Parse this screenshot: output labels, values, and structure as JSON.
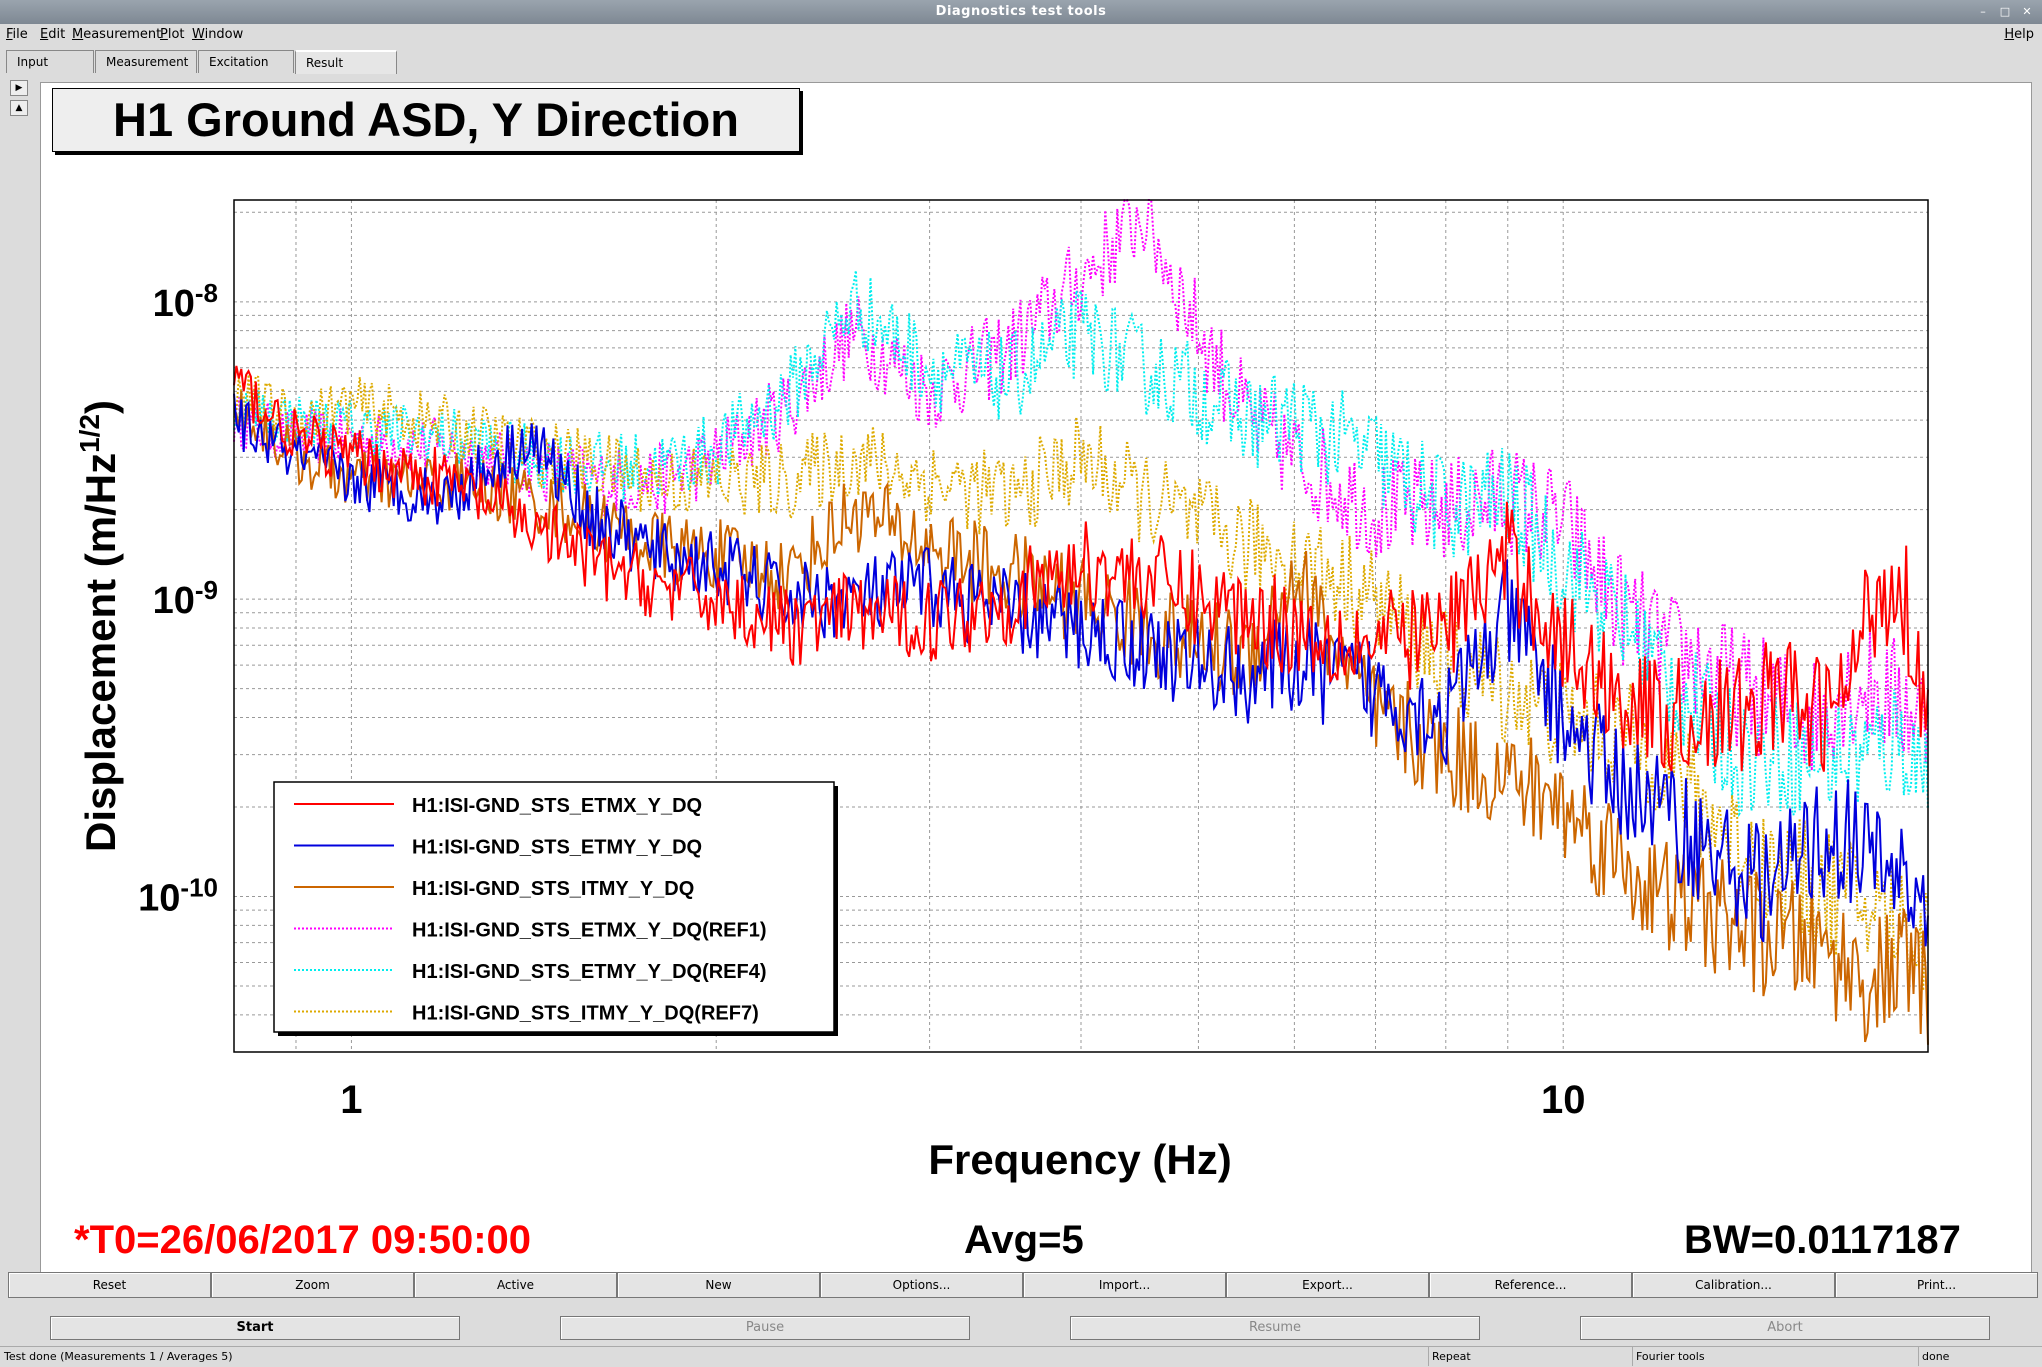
{
  "window": {
    "title": "Diagnostics test tools",
    "controls": [
      "–",
      "□",
      "✕"
    ]
  },
  "menu": {
    "items": [
      "File",
      "Edit",
      "Measurement",
      "Plot",
      "Window"
    ],
    "help": "Help"
  },
  "tabs": [
    "Input",
    "Measurement",
    "Excitation",
    "Result"
  ],
  "active_tab": "Result",
  "plot": {
    "title": "H1 Ground ASD, Y Direction",
    "footer_left": "*T0=26/06/2017 09:50:00",
    "footer_center": "Avg=5",
    "footer_right": "BW=0.0117187"
  },
  "chart_data": {
    "type": "line",
    "title": "H1 Ground ASD, Y Direction",
    "xlabel": "Frequency (Hz)",
    "ylabel_main": "Displacement (m/Hz",
    "ylabel_sup": "1/2",
    "ylabel_end": ")",
    "xscale": "log",
    "yscale": "log",
    "xlim": [
      0.8,
      20
    ],
    "ylim": [
      3e-11,
      2.2e-08
    ],
    "x_ticks": [
      {
        "value": 1,
        "label": "1"
      },
      {
        "value": 10,
        "label": "10"
      }
    ],
    "y_ticks": [
      {
        "value": 1e-10,
        "base": "10",
        "exp": "-10"
      },
      {
        "value": 1e-09,
        "base": "10",
        "exp": "-9"
      },
      {
        "value": 1e-08,
        "base": "10",
        "exp": "-8"
      }
    ],
    "grid": true,
    "legend_position": "bottom-left",
    "x": [
      0.8,
      0.9,
      1.0,
      1.2,
      1.4,
      1.6,
      1.8,
      2.0,
      2.3,
      2.6,
      3.0,
      3.5,
      4.0,
      4.5,
      5.0,
      5.5,
      6.0,
      7.0,
      8.0,
      9.0,
      10.0,
      11.0,
      12.0,
      13.0,
      14.0,
      15.0,
      16.0,
      17.0,
      18.0,
      19.0,
      20.0
    ],
    "series": [
      {
        "name": "H1:ISI-GND_STS_ETMX_Y_DQ",
        "color": "#ff0000",
        "dash": "solid",
        "values": [
          5.5e-09,
          3.5e-09,
          3e-09,
          2.5e-09,
          1.8e-09,
          1.3e-09,
          1.1e-09,
          1e-09,
          8e-10,
          9e-10,
          8.5e-10,
          1e-09,
          1.3e-09,
          1.2e-09,
          1e-09,
          9e-10,
          8e-10,
          7e-10,
          8e-10,
          1.4e-09,
          7e-10,
          5e-10,
          4e-10,
          4e-10,
          4e-10,
          5e-10,
          4e-10,
          4.5e-10,
          1e-09,
          1.2e-09,
          4e-10
        ]
      },
      {
        "name": "H1:ISI-GND_STS_ETMY_Y_DQ",
        "color": "#0000dd",
        "dash": "solid",
        "values": [
          4e-09,
          3e-09,
          2.5e-09,
          2.2e-09,
          3.5e-09,
          1.8e-09,
          1.4e-09,
          1.3e-09,
          1e-09,
          1e-09,
          1.1e-09,
          9e-10,
          8e-10,
          7e-10,
          6e-10,
          5.5e-10,
          6e-10,
          5e-10,
          4e-10,
          9e-10,
          4e-10,
          2.5e-10,
          2e-10,
          1.5e-10,
          1.2e-10,
          1.1e-10,
          1.5e-10,
          1.6e-10,
          1.3e-10,
          1.2e-10,
          8e-11
        ]
      },
      {
        "name": "H1:ISI-GND_STS_ITMY_Y_DQ",
        "color": "#cc6600",
        "dash": "solid",
        "values": [
          4.5e-09,
          3e-09,
          2.5e-09,
          2.5e-09,
          2.2e-09,
          1.8e-09,
          1.5e-09,
          1.4e-09,
          1.2e-09,
          2e-09,
          1.5e-09,
          1.2e-09,
          1e-09,
          8e-10,
          7e-10,
          6.5e-10,
          1.2e-09,
          4e-10,
          3e-10,
          2.5e-10,
          2e-10,
          1.4e-10,
          1e-10,
          9e-11,
          8e-11,
          7e-11,
          7e-11,
          6e-11,
          5e-11,
          6e-11,
          5e-11
        ]
      },
      {
        "name": "H1:ISI-GND_STS_ETMX_Y_DQ(REF1)",
        "color": "#ff00ff",
        "dash": "dotted",
        "values": [
          4e-09,
          3.5e-09,
          3.5e-09,
          3.2e-09,
          2.8e-09,
          2.5e-09,
          2.5e-09,
          3e-09,
          4.5e-09,
          8e-09,
          5e-09,
          7e-09,
          1.2e-08,
          2e-08,
          8e-09,
          4e-09,
          3e-09,
          2e-09,
          2e-09,
          2.2e-09,
          1.8e-09,
          1e-09,
          7e-10,
          6e-10,
          5e-10,
          4.5e-10,
          4e-10,
          5e-10,
          5e-10,
          4.5e-10,
          4e-10
        ]
      },
      {
        "name": "H1:ISI-GND_STS_ETMY_Y_DQ(REF4)",
        "color": "#00eeee",
        "dash": "dotted",
        "values": [
          4.5e-09,
          4e-09,
          3.8e-09,
          3.5e-09,
          3e-09,
          2.8e-09,
          2.8e-09,
          3.2e-09,
          5e-09,
          1e-08,
          6e-09,
          5.5e-09,
          8e-09,
          6e-09,
          5e-09,
          4e-09,
          4e-09,
          3e-09,
          2e-09,
          2.2e-09,
          1.3e-09,
          9e-10,
          6e-10,
          4e-10,
          3e-10,
          3e-10,
          3e-10,
          3e-10,
          3e-10,
          3.5e-10,
          2.5e-10
        ]
      },
      {
        "name": "H1:ISI-GND_STS_ITMY_Y_DQ(REF7)",
        "color": "#ddaa00",
        "dash": "dotted",
        "values": [
          5e-09,
          4e-09,
          4.5e-09,
          3.8e-09,
          3.2e-09,
          2.8e-09,
          2.5e-09,
          2.5e-09,
          2.5e-09,
          3e-09,
          2.5e-09,
          2.2e-09,
          3e-09,
          2.2e-09,
          1.8e-09,
          1.5e-09,
          1.4e-09,
          1e-09,
          6e-10,
          5e-10,
          4e-10,
          3.5e-10,
          3e-10,
          2e-10,
          1.5e-10,
          1.2e-10,
          1.1e-10,
          1e-10,
          9e-11,
          8e-11,
          7e-11
        ]
      }
    ]
  },
  "buttons_row1": [
    "Reset",
    "Zoom",
    "Active",
    "New",
    "Options...",
    "Import...",
    "Export...",
    "Reference...",
    "Calibration...",
    "Print..."
  ],
  "buttons_row2": [
    {
      "label": "Start",
      "enabled": true
    },
    {
      "label": "Pause",
      "enabled": false
    },
    {
      "label": "Resume",
      "enabled": false
    },
    {
      "label": "Abort",
      "enabled": false
    }
  ],
  "status": {
    "main": "Test done (Measurements 1 / Averages 5)",
    "mode": "Repeat",
    "tool": "Fourier tools",
    "state": "done"
  }
}
